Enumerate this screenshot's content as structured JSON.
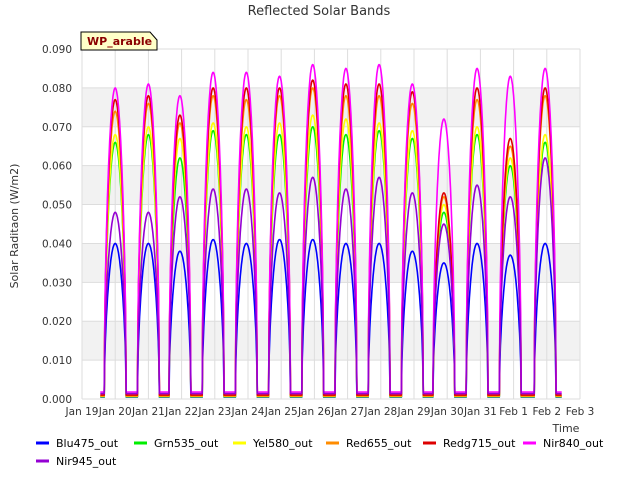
{
  "chart_data": {
    "type": "line",
    "title": "Reflected Solar Bands",
    "xlabel": "Time",
    "ylabel": "Solar Raditaon (W/m2)",
    "badge": "WP_arable",
    "ylim": [
      0,
      0.09
    ],
    "yticks": [
      "0.000",
      "0.010",
      "0.020",
      "0.030",
      "0.040",
      "0.050",
      "0.060",
      "0.070",
      "0.080",
      "0.090"
    ],
    "xlim": [
      0,
      15
    ],
    "xticks": [
      "Jan 19",
      "Jan 20",
      "Jan 21",
      "Jan 22",
      "Jan 23",
      "Jan 24",
      "Jan 25",
      "Jan 26",
      "Jan 27",
      "Jan 28",
      "Jan 29",
      "Jan 30",
      "Jan 31",
      "Feb 1",
      "Feb 2",
      "Feb 3"
    ],
    "grid": true,
    "legend_position": "bottom",
    "day_centers": [
      1.0,
      2.0,
      2.95,
      3.95,
      4.95,
      5.95,
      6.95,
      7.95,
      8.95,
      9.95,
      10.9,
      11.9,
      12.9,
      13.95
    ],
    "series": [
      {
        "name": "Blu475_out",
        "color": "#0000ff",
        "baseline": 0.0005,
        "peaks": [
          0.04,
          0.04,
          0.038,
          0.041,
          0.04,
          0.041,
          0.041,
          0.04,
          0.04,
          0.038,
          0.035,
          0.04,
          0.037,
          0.04
        ]
      },
      {
        "name": "Grn535_out",
        "color": "#00ee00",
        "baseline": 0.0006,
        "peaks": [
          0.066,
          0.068,
          0.062,
          0.069,
          0.068,
          0.068,
          0.07,
          0.068,
          0.069,
          0.067,
          0.048,
          0.068,
          0.06,
          0.066
        ]
      },
      {
        "name": "Yel580_out",
        "color": "#ffff00",
        "baseline": 0.0007,
        "peaks": [
          0.068,
          0.07,
          0.067,
          0.071,
          0.07,
          0.071,
          0.073,
          0.072,
          0.071,
          0.069,
          0.05,
          0.07,
          0.062,
          0.068
        ]
      },
      {
        "name": "Red655_out",
        "color": "#ff8c00",
        "baseline": 0.0008,
        "peaks": [
          0.074,
          0.076,
          0.071,
          0.078,
          0.077,
          0.078,
          0.08,
          0.078,
          0.078,
          0.076,
          0.052,
          0.077,
          0.065,
          0.078
        ]
      },
      {
        "name": "Redg715_out",
        "color": "#dd0000",
        "baseline": 0.001,
        "peaks": [
          0.077,
          0.078,
          0.073,
          0.08,
          0.08,
          0.08,
          0.082,
          0.081,
          0.081,
          0.079,
          0.053,
          0.08,
          0.067,
          0.08
        ]
      },
      {
        "name": "Nir840_out",
        "color": "#ff00ff",
        "baseline": 0.0018,
        "peaks": [
          0.08,
          0.081,
          0.078,
          0.084,
          0.084,
          0.083,
          0.086,
          0.085,
          0.086,
          0.081,
          0.072,
          0.085,
          0.083,
          0.085
        ]
      },
      {
        "name": "Nir945_out",
        "color": "#9400d3",
        "baseline": 0.0014,
        "peaks": [
          0.048,
          0.048,
          0.052,
          0.054,
          0.054,
          0.053,
          0.057,
          0.054,
          0.057,
          0.053,
          0.045,
          0.055,
          0.052,
          0.062
        ]
      }
    ]
  }
}
